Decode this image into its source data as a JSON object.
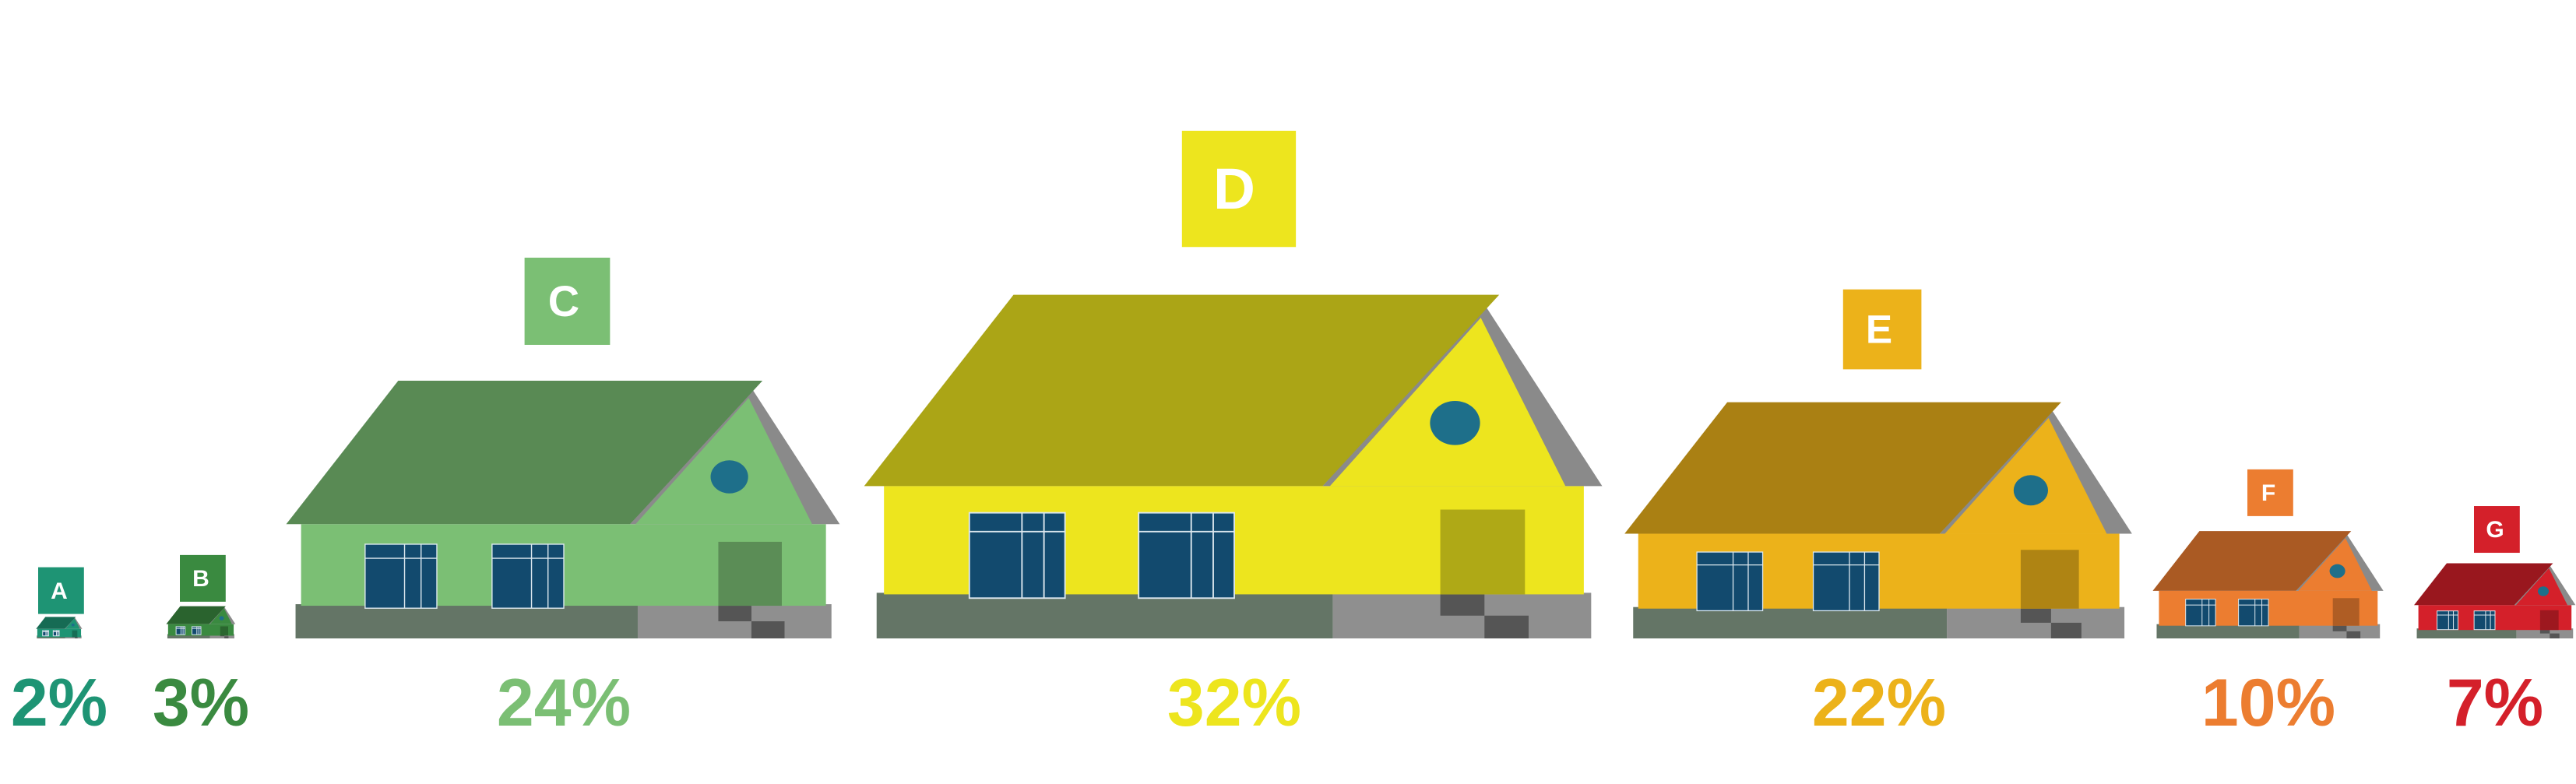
{
  "chart_data": {
    "type": "bar",
    "categories": [
      "A",
      "B",
      "C",
      "D",
      "E",
      "F",
      "G"
    ],
    "values": [
      2,
      3,
      24,
      32,
      22,
      10,
      7
    ],
    "value_labels": [
      "2%",
      "3%",
      "24%",
      "32%",
      "22%",
      "10%",
      "7%"
    ],
    "colors": [
      "#1e9474",
      "#3a8a40",
      "#7bbf74",
      "#ede51e",
      "#ecb21a",
      "#ec7d30",
      "#d4202a"
    ],
    "title": "",
    "xlabel": "",
    "ylabel": "",
    "mark": "house-icon",
    "grid": false,
    "legend": "none"
  }
}
